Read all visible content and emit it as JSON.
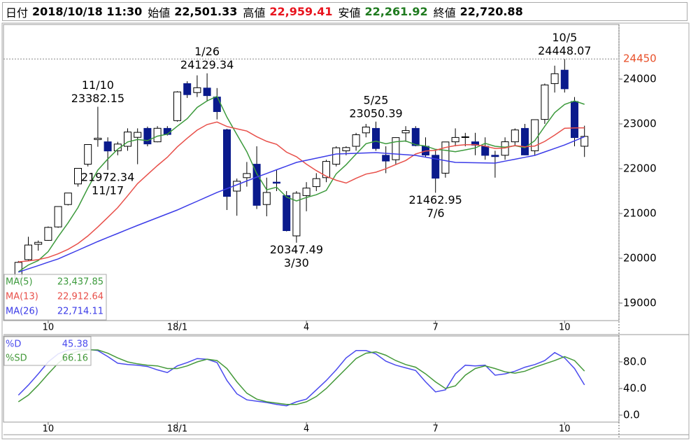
{
  "header": {
    "fields": [
      {
        "label": "日付",
        "value": "2018/10/18 11:30",
        "color": "#000000"
      },
      {
        "label": "始値",
        "value": "22,501.33",
        "color": "#000000"
      },
      {
        "label": "高値",
        "value": "22,959.41",
        "color": "#e8141e"
      },
      {
        "label": "安値",
        "value": "22,261.92",
        "color": "#1e7a1e"
      },
      {
        "label": "終値",
        "value": "22,720.88",
        "color": "#000000"
      }
    ]
  },
  "chart_data": [
    {
      "type": "candlestick",
      "categories": [
        null,
        null,
        null,
        "10",
        null,
        null,
        null,
        null,
        null,
        null,
        null,
        null,
        null,
        null,
        null,
        null,
        "18/1",
        null,
        null,
        null,
        null,
        null,
        null,
        null,
        null,
        null,
        null,
        null,
        null,
        "4",
        null,
        null,
        null,
        null,
        null,
        null,
        null,
        null,
        null,
        null,
        null,
        null,
        "7",
        null,
        null,
        null,
        null,
        null,
        null,
        null,
        null,
        null,
        null,
        null,
        null,
        "10",
        null,
        null
      ],
      "open": [
        19546,
        19970,
        20312,
        20400,
        20700,
        21200,
        21660,
        22100,
        22650,
        22600,
        22400,
        22500,
        22700,
        22900,
        22600,
        22900,
        23073,
        23900,
        23700,
        23800,
        23600,
        22870,
        21500,
        21800,
        22100,
        21200,
        21700,
        21400,
        20500,
        21400,
        21600,
        21800,
        22100,
        22400,
        22500,
        22800,
        22900,
        22300,
        22200,
        22800,
        22900,
        22500,
        22300,
        21900,
        22600,
        22700,
        22600,
        22500,
        22300,
        22300,
        22600,
        22900,
        22400,
        23100,
        23900,
        24200,
        23500,
        22501.33
      ],
      "high": [
        19940,
        20481,
        20397,
        20710,
        21160,
        21460,
        22012,
        22540,
        23382.15,
        22700,
        22600,
        22900,
        22900,
        22940,
        22950,
        22950,
        23730,
        23952,
        24084,
        24129.34,
        23800,
        22890,
        21780,
        22150,
        22500,
        21800,
        21970,
        21500,
        21500,
        21700,
        21900,
        22200,
        22500,
        22500,
        22800,
        23000,
        23050.39,
        22500,
        22700,
        22950,
        22950,
        22700,
        22400,
        22600,
        22900,
        22800,
        22800,
        22700,
        22400,
        22700,
        22900,
        23000,
        23100,
        23900,
        24300,
        24448.07,
        23600,
        22959.41
      ],
      "low": [
        19500,
        19950,
        20170,
        20390,
        20680,
        21180,
        21600,
        22050,
        22490,
        21972.34,
        22300,
        22400,
        22100,
        22500,
        22590,
        22740,
        23050,
        23580,
        23600,
        23500,
        23100,
        21078,
        20950,
        21600,
        21100,
        20938,
        21500,
        20600,
        20347.49,
        21050,
        21500,
        21700,
        22050,
        22300,
        22400,
        22700,
        22400,
        21900,
        22100,
        22600,
        22500,
        22250,
        21462.95,
        21800,
        22500,
        22500,
        22300,
        22200,
        21800,
        22200,
        22500,
        22300,
        22300,
        23000,
        23700,
        23700,
        22500,
        22261.92
      ],
      "close": [
        19909,
        20296,
        20356,
        20690,
        21155,
        21457,
        22008,
        22539,
        22681,
        22396,
        22550,
        22819,
        22811,
        22553,
        22902,
        22764,
        23714,
        23653,
        23808,
        23631,
        23274,
        21382,
        21720,
        21892,
        21182,
        21469,
        21676,
        20617,
        21454,
        21567,
        21778,
        22162,
        22467,
        22472,
        22758,
        22930,
        22450,
        22171,
        22694,
        22851,
        22516,
        22304,
        21788,
        22597,
        22697,
        22712,
        22525,
        22298,
        22270,
        22601,
        22865,
        22307,
        23094,
        23870,
        24120,
        23784,
        22694,
        22720.88
      ],
      "up_color": "#ffffff",
      "down_color": "#0a1a8c",
      "wick_color": "#000000",
      "series": [
        {
          "name": "MA(5)",
          "color": "#3c9a3c",
          "legend_value": "23,437.85",
          "values": [
            19700,
            19850,
            19950,
            20150,
            20481,
            20791,
            21133,
            21570,
            21968,
            22216,
            22435,
            22597,
            22651,
            22626,
            22727,
            22770,
            22949,
            23117,
            23368,
            23514,
            23616,
            23150,
            22763,
            22380,
            21890,
            21529,
            21588,
            21367,
            21280,
            21357,
            21418,
            21516,
            21886,
            22089,
            22327,
            22558,
            22615,
            22556,
            22601,
            22619,
            22536,
            22507,
            22431,
            22411,
            22380,
            22420,
            22464,
            22566,
            22500,
            22481,
            22512,
            22468,
            22627,
            22947,
            23251,
            23435,
            23512,
            23437.85
          ]
        },
        {
          "name": "MA(13)",
          "color": "#e8504a",
          "legend_value": "22,912.64",
          "values": [
            19920,
            19940,
            19970,
            20020,
            20100,
            20200,
            20330,
            20500,
            20700,
            20912,
            21131,
            21395,
            21667,
            21870,
            22071,
            22256,
            22488,
            22681,
            22861,
            22986,
            23043,
            22943,
            22891,
            22840,
            22714,
            22611,
            22544,
            22368,
            22267,
            22102,
            21958,
            21831,
            21742,
            21680,
            21786,
            21879,
            21922,
            21998,
            22092,
            22182,
            22328,
            22394,
            22411,
            22474,
            22515,
            22534,
            22538,
            22503,
            22452,
            22463,
            22517,
            22487,
            22506,
            22610,
            22750,
            22903,
            22911,
            22912.64
          ]
        },
        {
          "name": "MA(26)",
          "color": "#3c3ce8",
          "legend_value": "22,714.11",
          "values": [
            19690,
            19764,
            19838,
            19912,
            19985,
            20083,
            20180,
            20278,
            20375,
            20465,
            20555,
            20645,
            20734,
            20820,
            20906,
            20992,
            21078,
            21176,
            21274,
            21372,
            21470,
            21556,
            21641,
            21727,
            21812,
            21894,
            21976,
            22058,
            22140,
            22187,
            22234,
            22281,
            22328,
            22336,
            22344,
            22352,
            22360,
            22344,
            22328,
            22313,
            22297,
            22258,
            22219,
            22179,
            22140,
            22136,
            22132,
            22129,
            22125,
            22168,
            22211,
            22254,
            22297,
            22375,
            22452,
            22530,
            22622,
            22714.11
          ]
        }
      ],
      "ylim": [
        18609,
        25219
      ],
      "yticks": [
        19000,
        20000,
        21000,
        22000,
        23000,
        24000
      ],
      "reference_line": {
        "value": 24450,
        "color": "#e8502a"
      },
      "annotations": [
        {
          "kind": "high",
          "date": "11/10",
          "price": 23382.15
        },
        {
          "kind": "low",
          "date": "11/17",
          "price": 21972.34
        },
        {
          "kind": "high",
          "date": "1/26",
          "price": 24129.34
        },
        {
          "kind": "low",
          "date": "3/30",
          "price": 20347.49
        },
        {
          "kind": "high",
          "date": "5/25",
          "price": 23050.39
        },
        {
          "kind": "low",
          "date": "7/6",
          "price": 21462.95
        },
        {
          "kind": "high",
          "date": "10/5",
          "price": 24448.07
        }
      ]
    },
    {
      "type": "line",
      "categories": [
        null,
        null,
        null,
        "10",
        null,
        null,
        null,
        null,
        null,
        null,
        null,
        null,
        null,
        null,
        null,
        null,
        "18/1",
        null,
        null,
        null,
        null,
        null,
        null,
        null,
        null,
        null,
        null,
        null,
        null,
        "4",
        null,
        null,
        null,
        null,
        null,
        null,
        null,
        null,
        null,
        null,
        null,
        null,
        "7",
        null,
        null,
        null,
        null,
        null,
        null,
        null,
        null,
        null,
        null,
        null,
        null,
        "10",
        null,
        null
      ],
      "series": [
        {
          "name": "%D",
          "color": "#4a4aee",
          "legend_value": "45.38",
          "values": [
            30,
            45,
            62,
            80,
            92,
            98,
            99,
            99,
            97,
            88,
            78,
            76,
            75,
            73,
            68,
            64,
            74,
            79,
            85,
            84,
            79,
            52,
            32,
            23,
            21,
            19,
            16,
            14,
            20,
            24,
            38,
            52,
            68,
            86,
            97,
            97,
            92,
            81,
            75,
            71,
            67,
            50,
            35,
            38,
            62,
            75,
            74,
            75,
            60,
            62,
            66,
            72,
            76,
            82,
            94,
            86,
            70,
            45.38
          ]
        },
        {
          "name": "%SD",
          "color": "#44993a",
          "legend_value": "66.16",
          "values": [
            20,
            30,
            45,
            62,
            78,
            90,
            96,
            98,
            98,
            93,
            86,
            80,
            77,
            75,
            74,
            70,
            70,
            74,
            80,
            84,
            82,
            70,
            50,
            33,
            24,
            20,
            18,
            16,
            16,
            20,
            28,
            40,
            55,
            70,
            85,
            93,
            95,
            90,
            82,
            76,
            72,
            62,
            50,
            40,
            44,
            60,
            70,
            74,
            70,
            65,
            63,
            66,
            72,
            77,
            82,
            88,
            82,
            66.16
          ]
        }
      ],
      "ylim": [
        -10.5,
        118.9
      ],
      "yticks": [
        {
          "value": 0,
          "label": "0.0"
        },
        {
          "value": 40,
          "label": "40.0"
        },
        {
          "value": 80,
          "label": "80.0"
        }
      ]
    }
  ]
}
